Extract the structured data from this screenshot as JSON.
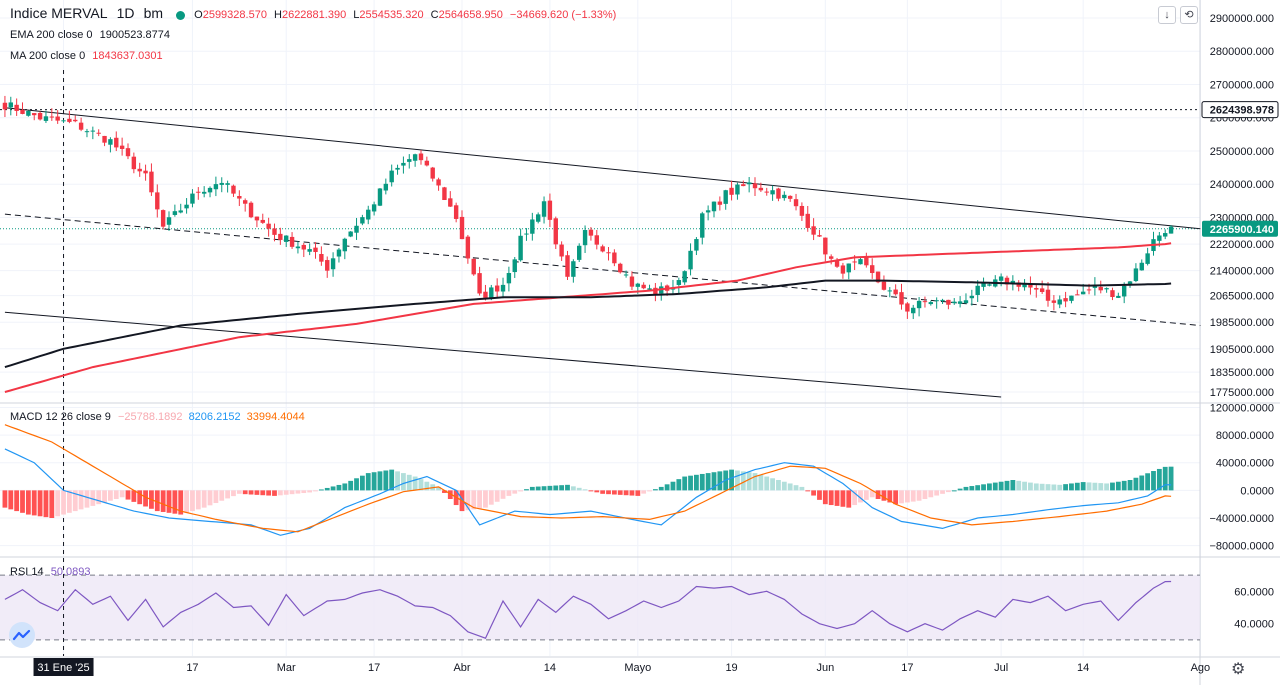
{
  "header": {
    "symbol": "Indice MERVAL",
    "interval": "1D",
    "exchange": "bm",
    "o_label": "O",
    "o_value": "2599328.570",
    "h_label": "H",
    "h_value": "2622881.390",
    "l_label": "L",
    "l_value": "2554535.320",
    "c_label": "C",
    "c_value": "2564658.950",
    "change": "−34669.620 (−1.33%)"
  },
  "indicators": {
    "ema": {
      "label": "EMA 200 close 0",
      "value": "1900523.8774",
      "color": "#131722"
    },
    "ma": {
      "label": "MA 200 close 0",
      "value": "1843637.0301",
      "color": "#f23645"
    },
    "macd": {
      "label": "MACD 12 26 close 9",
      "hist": "−25788.1892",
      "macd": "8206.2152",
      "signal": "33994.4044",
      "hist_color": "#f7a9b0",
      "macd_color": "#2196f3",
      "signal_color": "#ff6d00"
    },
    "rsi": {
      "label": "RSI 14",
      "value": "50.0893",
      "color": "#7e57c2"
    }
  },
  "toolbar": {
    "down_icon": "↓",
    "restore_icon": "⟲"
  },
  "chart_data": [
    {
      "type": "candlestick",
      "title": "Indice MERVAL",
      "ylim": [
        1745000,
        2930000
      ],
      "y_ticks": [
        "2900000.000",
        "2800000.000",
        "2700000.000",
        "2600000.000",
        "2500000.000",
        "2400000.000",
        "2300000.000",
        "2220000.000",
        "2140000.000",
        "2065000.000",
        "1985000.000",
        "1905000.000",
        "1835000.000",
        "1775000.000"
      ],
      "y_tick_values": [
        2900000,
        2800000,
        2700000,
        2600000,
        2500000,
        2400000,
        2300000,
        2220000,
        2140000,
        2065000,
        1985000,
        1905000,
        1835000,
        1775000
      ],
      "x_ticks": [
        "31 Ene '25",
        "17",
        "Mar",
        "17",
        "Abr",
        "14",
        "Mayo",
        "19",
        "Jun",
        "17",
        "Jul",
        "14",
        "Ago"
      ],
      "x_tick_idx": [
        10,
        32,
        48,
        63,
        78,
        93,
        108,
        124,
        140,
        154,
        170,
        184,
        204
      ],
      "n_bars": 200,
      "price_labels": [
        {
          "text": "2624398.978",
          "value": 2624398.978,
          "style": "dark"
        },
        {
          "text": "2265900.140",
          "value": 2265900.14,
          "style": "teal"
        }
      ],
      "hline": 2624398.978,
      "trendlines": [
        {
          "name": "upper channel",
          "points": [
            [
              0,
              2630000
            ],
            [
              204,
              2266000
            ]
          ],
          "dashed": false
        },
        {
          "name": "mid channel",
          "points": [
            [
              0,
              2310000
            ],
            [
              204,
              1975000
            ]
          ],
          "dashed": true
        },
        {
          "name": "lower channel",
          "points": [
            [
              0,
              2015000
            ],
            [
              170,
              1760000
            ]
          ],
          "dashed": false
        }
      ],
      "anchors": [
        [
          0,
          2640000
        ],
        [
          6,
          2600000
        ],
        [
          12,
          2580000
        ],
        [
          18,
          2530000
        ],
        [
          24,
          2420000
        ],
        [
          27,
          2270000
        ],
        [
          33,
          2380000
        ],
        [
          37,
          2410000
        ],
        [
          41,
          2330000
        ],
        [
          46,
          2250000
        ],
        [
          52,
          2200000
        ],
        [
          55,
          2150000
        ],
        [
          58,
          2240000
        ],
        [
          62,
          2320000
        ],
        [
          66,
          2430000
        ],
        [
          70,
          2490000
        ],
        [
          73,
          2420000
        ],
        [
          77,
          2300000
        ],
        [
          81,
          2060000
        ],
        [
          85,
          2100000
        ],
        [
          88,
          2230000
        ],
        [
          92,
          2350000
        ],
        [
          96,
          2110000
        ],
        [
          99,
          2250000
        ],
        [
          103,
          2200000
        ],
        [
          107,
          2100000
        ],
        [
          111,
          2075000
        ],
        [
          115,
          2100000
        ],
        [
          119,
          2300000
        ],
        [
          123,
          2370000
        ],
        [
          127,
          2400000
        ],
        [
          131,
          2380000
        ],
        [
          134,
          2350000
        ],
        [
          138,
          2260000
        ],
        [
          142,
          2140000
        ],
        [
          146,
          2160000
        ],
        [
          150,
          2090000
        ],
        [
          154,
          2025000
        ],
        [
          158,
          2050000
        ],
        [
          162,
          2040000
        ],
        [
          166,
          2080000
        ],
        [
          170,
          2110000
        ],
        [
          174,
          2100000
        ],
        [
          178,
          2050000
        ],
        [
          182,
          2060000
        ],
        [
          186,
          2090000
        ],
        [
          190,
          2070000
        ],
        [
          193,
          2140000
        ],
        [
          196,
          2230000
        ],
        [
          198,
          2265900
        ]
      ],
      "ema_anchors": [
        [
          0,
          1850000
        ],
        [
          10,
          1905000
        ],
        [
          30,
          1975000
        ],
        [
          50,
          2010000
        ],
        [
          70,
          2040000
        ],
        [
          85,
          2060000
        ],
        [
          100,
          2060000
        ],
        [
          115,
          2070000
        ],
        [
          130,
          2090000
        ],
        [
          140,
          2110000
        ],
        [
          150,
          2110000
        ],
        [
          165,
          2105000
        ],
        [
          185,
          2095000
        ],
        [
          198,
          2100000
        ]
      ],
      "ma_anchors": [
        [
          0,
          1775000
        ],
        [
          15,
          1850000
        ],
        [
          40,
          1940000
        ],
        [
          60,
          1980000
        ],
        [
          80,
          2040000
        ],
        [
          95,
          2060000
        ],
        [
          110,
          2080000
        ],
        [
          125,
          2110000
        ],
        [
          135,
          2150000
        ],
        [
          145,
          2180000
        ],
        [
          160,
          2190000
        ],
        [
          175,
          2200000
        ],
        [
          190,
          2210000
        ],
        [
          198,
          2220000
        ]
      ]
    },
    {
      "type": "macd",
      "title": "MACD 12 26 close 9",
      "ylim": [
        -95000,
        125000
      ],
      "y_ticks": [
        "120000.0000",
        "80000.0000",
        "40000.0000",
        "0.0000",
        "−40000.0000",
        "−80000.0000"
      ],
      "y_tick_values": [
        120000,
        80000,
        40000,
        0,
        -40000,
        -80000
      ],
      "macd_anchors": [
        [
          0,
          60000
        ],
        [
          5,
          40000
        ],
        [
          10,
          0
        ],
        [
          16,
          -15000
        ],
        [
          22,
          -30000
        ],
        [
          28,
          -40000
        ],
        [
          35,
          -45000
        ],
        [
          42,
          -50000
        ],
        [
          47,
          -65000
        ],
        [
          52,
          -55000
        ],
        [
          58,
          -25000
        ],
        [
          64,
          -5000
        ],
        [
          68,
          10000
        ],
        [
          72,
          20000
        ],
        [
          77,
          0
        ],
        [
          81,
          -50000
        ],
        [
          87,
          -30000
        ],
        [
          93,
          -35000
        ],
        [
          100,
          -30000
        ],
        [
          107,
          -42000
        ],
        [
          112,
          -50000
        ],
        [
          118,
          -10000
        ],
        [
          123,
          15000
        ],
        [
          128,
          30000
        ],
        [
          133,
          40000
        ],
        [
          138,
          35000
        ],
        [
          143,
          10000
        ],
        [
          148,
          -25000
        ],
        [
          153,
          -45000
        ],
        [
          160,
          -55000
        ],
        [
          166,
          -40000
        ],
        [
          172,
          -35000
        ],
        [
          178,
          -28000
        ],
        [
          184,
          -22000
        ],
        [
          190,
          -18000
        ],
        [
          195,
          -8000
        ],
        [
          198,
          8206
        ]
      ],
      "signal_anchors": [
        [
          0,
          95000
        ],
        [
          8,
          70000
        ],
        [
          16,
          30000
        ],
        [
          24,
          -10000
        ],
        [
          30,
          -30000
        ],
        [
          36,
          -42000
        ],
        [
          44,
          -55000
        ],
        [
          50,
          -60000
        ],
        [
          56,
          -40000
        ],
        [
          62,
          -20000
        ],
        [
          68,
          -2000
        ],
        [
          74,
          5000
        ],
        [
          80,
          -25000
        ],
        [
          88,
          -38000
        ],
        [
          95,
          -40000
        ],
        [
          102,
          -38000
        ],
        [
          110,
          -42000
        ],
        [
          116,
          -30000
        ],
        [
          122,
          -5000
        ],
        [
          128,
          20000
        ],
        [
          134,
          35000
        ],
        [
          140,
          32000
        ],
        [
          146,
          10000
        ],
        [
          152,
          -20000
        ],
        [
          158,
          -40000
        ],
        [
          165,
          -50000
        ],
        [
          172,
          -45000
        ],
        [
          180,
          -38000
        ],
        [
          188,
          -30000
        ],
        [
          194,
          -20000
        ],
        [
          198,
          -8000
        ]
      ],
      "hist_anchors": [
        [
          0,
          -25000
        ],
        [
          4,
          -35000
        ],
        [
          8,
          -40000
        ],
        [
          12,
          -30000
        ],
        [
          16,
          -20000
        ],
        [
          20,
          -10000
        ],
        [
          26,
          -30000
        ],
        [
          30,
          -35000
        ],
        [
          34,
          -25000
        ],
        [
          40,
          -5000
        ],
        [
          46,
          -8000
        ],
        [
          52,
          -3000
        ],
        [
          58,
          10000
        ],
        [
          62,
          25000
        ],
        [
          66,
          30000
        ],
        [
          70,
          20000
        ],
        [
          74,
          5000
        ],
        [
          78,
          -30000
        ],
        [
          82,
          -25000
        ],
        [
          86,
          -8000
        ],
        [
          90,
          5000
        ],
        [
          96,
          8000
        ],
        [
          102,
          -5000
        ],
        [
          108,
          -8000
        ],
        [
          112,
          5000
        ],
        [
          116,
          20000
        ],
        [
          120,
          25000
        ],
        [
          124,
          30000
        ],
        [
          128,
          25000
        ],
        [
          132,
          15000
        ],
        [
          136,
          5000
        ],
        [
          140,
          -20000
        ],
        [
          144,
          -25000
        ],
        [
          148,
          -10000
        ],
        [
          152,
          -20000
        ],
        [
          156,
          -15000
        ],
        [
          160,
          -5000
        ],
        [
          164,
          5000
        ],
        [
          168,
          10000
        ],
        [
          172,
          15000
        ],
        [
          176,
          10000
        ],
        [
          180,
          8000
        ],
        [
          184,
          12000
        ],
        [
          188,
          10000
        ],
        [
          192,
          15000
        ],
        [
          196,
          28000
        ],
        [
          198,
          34000
        ]
      ]
    },
    {
      "type": "rsi",
      "title": "RSI 14",
      "ylim": [
        20,
        80
      ],
      "band": [
        30,
        70
      ],
      "y_ticks": [
        "60.0000",
        "40.0000"
      ],
      "y_tick_values": [
        60,
        40
      ],
      "rsi_anchors": [
        [
          0,
          55
        ],
        [
          3,
          61
        ],
        [
          6,
          53
        ],
        [
          9,
          48
        ],
        [
          12,
          61
        ],
        [
          15,
          52
        ],
        [
          18,
          57
        ],
        [
          21,
          42
        ],
        [
          24,
          55
        ],
        [
          27,
          38
        ],
        [
          30,
          47
        ],
        [
          33,
          52
        ],
        [
          36,
          59
        ],
        [
          39,
          50
        ],
        [
          42,
          51
        ],
        [
          45,
          39
        ],
        [
          48,
          58
        ],
        [
          51,
          45
        ],
        [
          55,
          54
        ],
        [
          58,
          55
        ],
        [
          61,
          59
        ],
        [
          64,
          61
        ],
        [
          67,
          57
        ],
        [
          70,
          51
        ],
        [
          73,
          50
        ],
        [
          76,
          45
        ],
        [
          79,
          35
        ],
        [
          82,
          31
        ],
        [
          85,
          54
        ],
        [
          88,
          38
        ],
        [
          91,
          55
        ],
        [
          94,
          47
        ],
        [
          97,
          57
        ],
        [
          100,
          52
        ],
        [
          103,
          43
        ],
        [
          106,
          48
        ],
        [
          109,
          54
        ],
        [
          112,
          50
        ],
        [
          115,
          54
        ],
        [
          118,
          63
        ],
        [
          121,
          62
        ],
        [
          124,
          63
        ],
        [
          127,
          58
        ],
        [
          130,
          60
        ],
        [
          133,
          55
        ],
        [
          136,
          46
        ],
        [
          139,
          40
        ],
        [
          142,
          37
        ],
        [
          145,
          40
        ],
        [
          148,
          48
        ],
        [
          151,
          40
        ],
        [
          154,
          35
        ],
        [
          157,
          40
        ],
        [
          160,
          36
        ],
        [
          163,
          43
        ],
        [
          166,
          48
        ],
        [
          169,
          44
        ],
        [
          172,
          55
        ],
        [
          175,
          53
        ],
        [
          178,
          57
        ],
        [
          181,
          48
        ],
        [
          184,
          52
        ],
        [
          187,
          54
        ],
        [
          190,
          42
        ],
        [
          193,
          53
        ],
        [
          196,
          62
        ],
        [
          198,
          66
        ]
      ]
    }
  ]
}
